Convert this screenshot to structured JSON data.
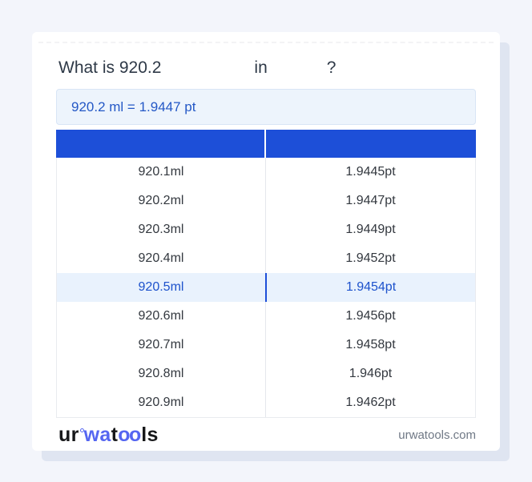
{
  "title": {
    "question_prefix": "What is 920.2",
    "connector": "in",
    "question_mark": "?"
  },
  "result": {
    "text": "920.2 ml = 1.9447 pt"
  },
  "conversion_table": {
    "col1_header": "",
    "col2_header": "",
    "rows": [
      {
        "from": "920.1ml",
        "to": "1.9445pt",
        "highlighted": false
      },
      {
        "from": "920.2ml",
        "to": "1.9447pt",
        "highlighted": false
      },
      {
        "from": "920.3ml",
        "to": "1.9449pt",
        "highlighted": false
      },
      {
        "from": "920.4ml",
        "to": "1.9452pt",
        "highlighted": false
      },
      {
        "from": "920.5ml",
        "to": "1.9454pt",
        "highlighted": true
      },
      {
        "from": "920.6ml",
        "to": "1.9456pt",
        "highlighted": false
      },
      {
        "from": "920.7ml",
        "to": "1.9458pt",
        "highlighted": false
      },
      {
        "from": "920.8ml",
        "to": "1.946pt",
        "highlighted": false
      },
      {
        "from": "920.9ml",
        "to": "1.9462pt",
        "highlighted": false
      }
    ]
  },
  "footer": {
    "logo_parts": {
      "p1": "ur",
      "p2": "wa",
      "p3": "t",
      "p4": "oo",
      "p5": "ls"
    },
    "site_url": "urwatools.com"
  },
  "colors": {
    "page_bg": "#f3f5fb",
    "card_bg": "#ffffff",
    "card_shadow": "#dfe5f1",
    "header_blue": "#1d4fd8",
    "result_bg": "#edf4fc",
    "result_border": "#d8e5f5",
    "result_text": "#2458c6",
    "highlight_row_bg": "#e9f2fd",
    "highlight_row_text": "#1d52cc",
    "highlight_divider": "#1d4ed8",
    "row_text": "#33383f",
    "column_divider": "#e4e7ec",
    "logo_blue": "#5566f1",
    "site_url_text": "#6f7885"
  }
}
